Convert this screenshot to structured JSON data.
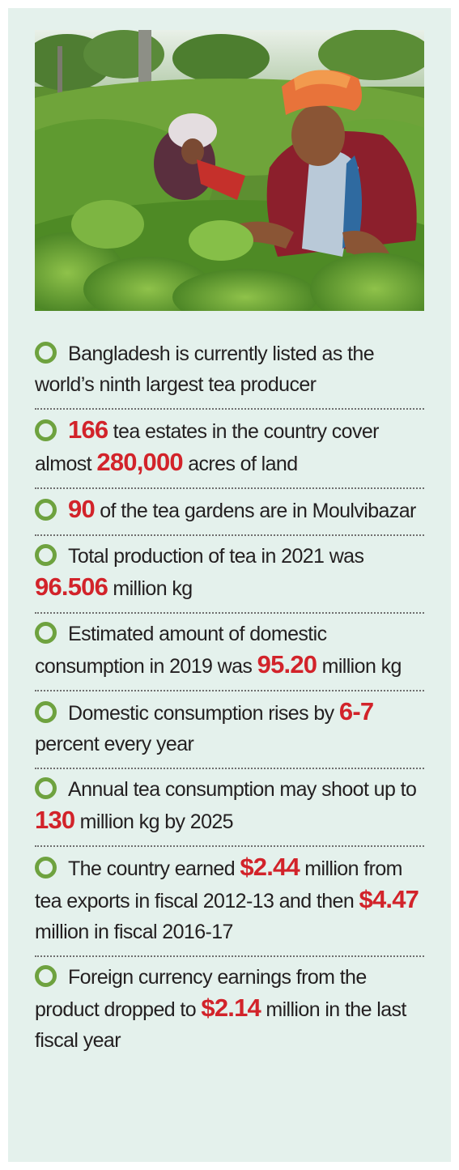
{
  "colors": {
    "panel_background": "#e4f1ec",
    "bullet": "#6ea23f",
    "highlight": "#d2232a",
    "text": "#231f20"
  },
  "photo": {
    "subject": "tea-pickers-photo"
  },
  "facts": [
    {
      "t1": "Bangladesh is currently listed as the world’s ninth largest tea producer"
    },
    {
      "h1": "166",
      "t1": " tea estates in the country cover almost ",
      "h2": "280,000",
      "t2": " acres of land"
    },
    {
      "h1": "90",
      "t1": " of the tea gardens are in Moulvibazar"
    },
    {
      "t1": "Total production of tea in 2021 was ",
      "h1": "96.506",
      "t2": " million kg"
    },
    {
      "t1": "Estimated amount of domestic consumption in 2019 was ",
      "h1": "95.20",
      "t2": " million kg"
    },
    {
      "t1": "Domestic consumption rises by ",
      "h1": "6-7",
      "t2": " percent every year"
    },
    {
      "t1": "Annual tea consumption may shoot up to ",
      "h1": "130",
      "t2": " million kg by 2025"
    },
    {
      "t1": "The country earned ",
      "h1": "$2.44",
      "t2": " million from tea exports in fiscal 2012-13 and then ",
      "h2": "$4.47",
      "t3": " million in fiscal 2016-17"
    },
    {
      "t1": "Foreign currency earnings from the product dropped to ",
      "h1": "$2.14",
      "t2": " million in the last fiscal year"
    }
  ]
}
